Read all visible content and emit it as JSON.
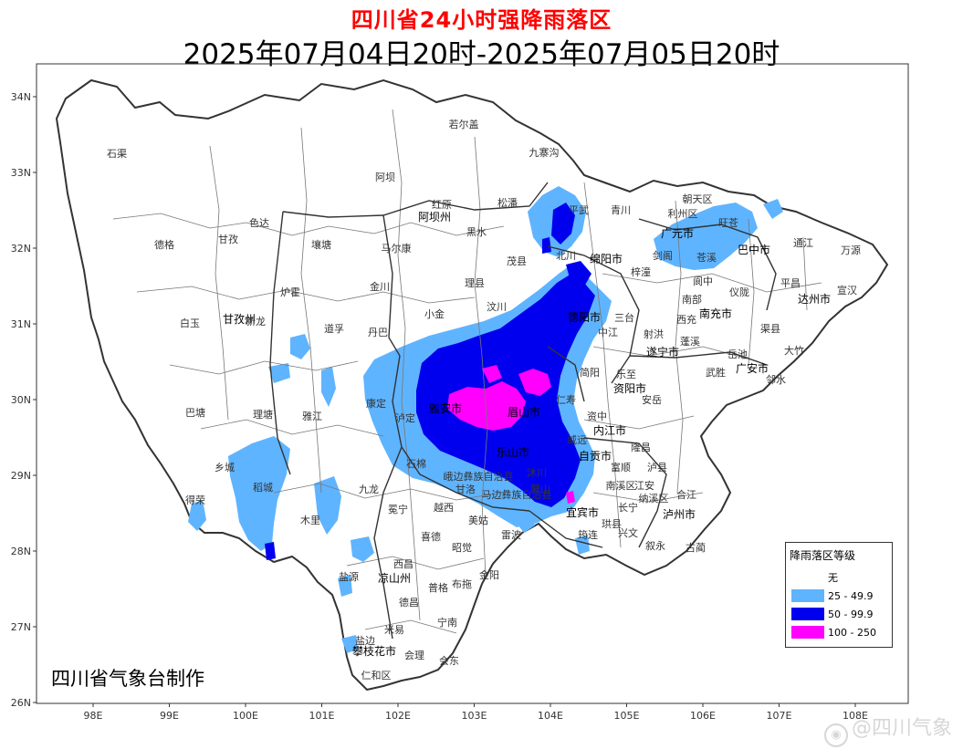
{
  "title": "四川省24小时强降雨落区",
  "subtitle": "2025年07月04日20时-2025年07月05日20时",
  "axes": {
    "lat_ticks": [
      "34N",
      "33N",
      "32N",
      "31N",
      "30N",
      "29N",
      "28N",
      "27N",
      "26N"
    ],
    "lon_ticks": [
      "98E",
      "99E",
      "100E",
      "101E",
      "102E",
      "103E",
      "104E",
      "105E",
      "106E",
      "107E",
      "108E"
    ]
  },
  "legend": {
    "title": "降雨落区等级",
    "items": [
      {
        "label": "无",
        "color": "#ffffff"
      },
      {
        "label": "25 - 49.9",
        "color": "#5fb4ff"
      },
      {
        "label": "50 - 99.9",
        "color": "#0000ee"
      },
      {
        "label": "100 - 250",
        "color": "#ff00ff"
      }
    ]
  },
  "credit": "四川省气象台制作",
  "watermark": "@四川气象",
  "places": [
    {
      "name": "石渠"
    },
    {
      "name": "若尔盖"
    },
    {
      "name": "九寨沟"
    },
    {
      "name": "阿坝"
    },
    {
      "name": "红原"
    },
    {
      "name": "松潘"
    },
    {
      "name": "阿坝州"
    },
    {
      "name": "青川"
    },
    {
      "name": "朝天区"
    },
    {
      "name": "利州区"
    },
    {
      "name": "旺苍"
    },
    {
      "name": "德格"
    },
    {
      "name": "色达"
    },
    {
      "name": "甘孜"
    },
    {
      "name": "壤塘"
    },
    {
      "name": "马尔康"
    },
    {
      "name": "黑水"
    },
    {
      "name": "茂县"
    },
    {
      "name": "平武"
    },
    {
      "name": "北川"
    },
    {
      "name": "广元市"
    },
    {
      "name": "巴中市"
    },
    {
      "name": "通江"
    },
    {
      "name": "万源"
    },
    {
      "name": "绵阳市"
    },
    {
      "name": "梓潼"
    },
    {
      "name": "苍溪"
    },
    {
      "name": "剑阁"
    },
    {
      "name": "理县"
    },
    {
      "name": "金川"
    },
    {
      "name": "炉霍"
    },
    {
      "name": "白玉"
    },
    {
      "name": "甘孜州"
    },
    {
      "name": "新龙"
    },
    {
      "name": "道孚"
    },
    {
      "name": "丹巴"
    },
    {
      "name": "小金"
    },
    {
      "name": "汶川"
    },
    {
      "name": "德阳市"
    },
    {
      "name": "三台"
    },
    {
      "name": "南部"
    },
    {
      "name": "仪陇"
    },
    {
      "name": "平昌"
    },
    {
      "name": "宣汉"
    },
    {
      "name": "达州市"
    },
    {
      "name": "南充市"
    },
    {
      "name": "西充"
    },
    {
      "name": "阆中"
    },
    {
      "name": "中江"
    },
    {
      "name": "射洪"
    },
    {
      "name": "遂宁市"
    },
    {
      "name": "蓬溪"
    },
    {
      "name": "渠县"
    },
    {
      "name": "大竹"
    },
    {
      "name": "广安市"
    },
    {
      "name": "邻水"
    },
    {
      "name": "岳池"
    },
    {
      "name": "武胜"
    },
    {
      "name": "安岳"
    },
    {
      "name": "乐至"
    },
    {
      "name": "资阳市"
    },
    {
      "name": "简阳"
    },
    {
      "name": "雅江"
    },
    {
      "name": "康定"
    },
    {
      "name": "理塘"
    },
    {
      "name": "巴塘"
    },
    {
      "name": "泸定"
    },
    {
      "name": "雅安市"
    },
    {
      "name": "眉山市"
    },
    {
      "name": "仁寿"
    },
    {
      "name": "内江市"
    },
    {
      "name": "资中"
    },
    {
      "name": "威远"
    },
    {
      "name": "自贡市"
    },
    {
      "name": "富顺"
    },
    {
      "name": "隆昌"
    },
    {
      "name": "泸县"
    },
    {
      "name": "泸州市"
    },
    {
      "name": "合江"
    },
    {
      "name": "纳溪区"
    },
    {
      "name": "叙永"
    },
    {
      "name": "古蔺"
    },
    {
      "name": "宜宾市"
    },
    {
      "name": "南溪区"
    },
    {
      "name": "江安"
    },
    {
      "name": "长宁"
    },
    {
      "name": "珙县"
    },
    {
      "name": "兴文"
    },
    {
      "name": "筠连"
    },
    {
      "name": "屏山"
    },
    {
      "name": "乐山市"
    },
    {
      "name": "沐川"
    },
    {
      "name": "峨边彝族自治县"
    },
    {
      "name": "马边彝族自治县"
    },
    {
      "name": "石棉"
    },
    {
      "name": "九龙"
    },
    {
      "name": "稻城"
    },
    {
      "name": "乡城"
    },
    {
      "name": "得荣"
    },
    {
      "name": "木里"
    },
    {
      "name": "冕宁"
    },
    {
      "name": "越西"
    },
    {
      "name": "甘洛"
    },
    {
      "name": "美姑"
    },
    {
      "name": "雷波"
    },
    {
      "name": "喜德"
    },
    {
      "name": "昭觉"
    },
    {
      "name": "西昌"
    },
    {
      "name": "凉山州"
    },
    {
      "name": "盐源"
    },
    {
      "name": "普格"
    },
    {
      "name": "布拖"
    },
    {
      "name": "金阳"
    },
    {
      "name": "德昌"
    },
    {
      "name": "宁南"
    },
    {
      "name": "米易"
    },
    {
      "name": "盐边"
    },
    {
      "name": "攀枝花市"
    },
    {
      "name": "会理"
    },
    {
      "name": "会东"
    },
    {
      "name": "仁和区"
    }
  ]
}
